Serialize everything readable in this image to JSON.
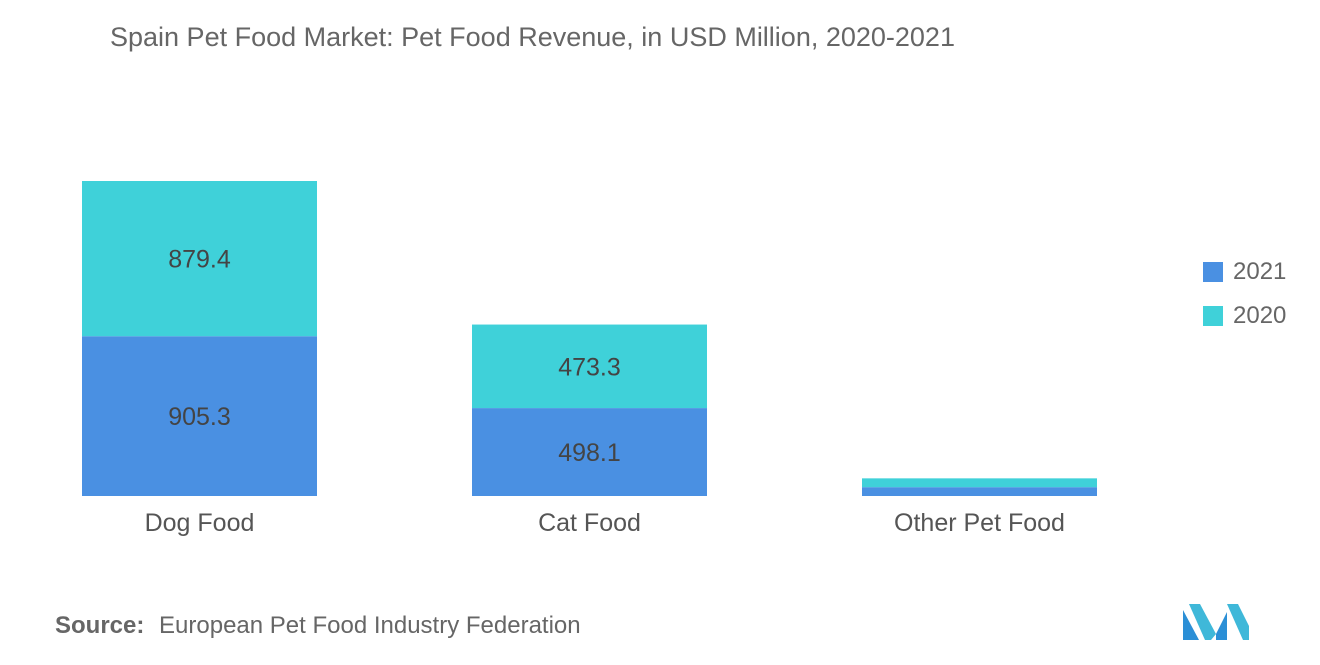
{
  "title": "Spain Pet Food Market: Pet Food Revenue, in USD Million, 2020-2021",
  "source": {
    "label": "Source:",
    "text": "European Pet Food Industry Federation"
  },
  "colors": {
    "series_2021": "#4a90e2",
    "series_2020": "#3fd1d9",
    "text": "#555555"
  },
  "chart_data": {
    "type": "bar",
    "stacked": true,
    "categories": [
      "Dog Food",
      "Cat Food",
      "Other Pet Food"
    ],
    "series": [
      {
        "name": "2021",
        "values": [
          905.3,
          498.1,
          50
        ],
        "labels": [
          "905.3",
          "498.1",
          ""
        ]
      },
      {
        "name": "2020",
        "values": [
          879.4,
          473.3,
          50
        ],
        "labels": [
          "879.4",
          "473.3",
          ""
        ]
      }
    ],
    "ylim": [
      0,
      1800
    ],
    "grid": false,
    "legend_position": "right"
  },
  "legend": [
    {
      "label": "2021",
      "color": "#4a90e2"
    },
    {
      "label": "2020",
      "color": "#3fd1d9"
    }
  ]
}
